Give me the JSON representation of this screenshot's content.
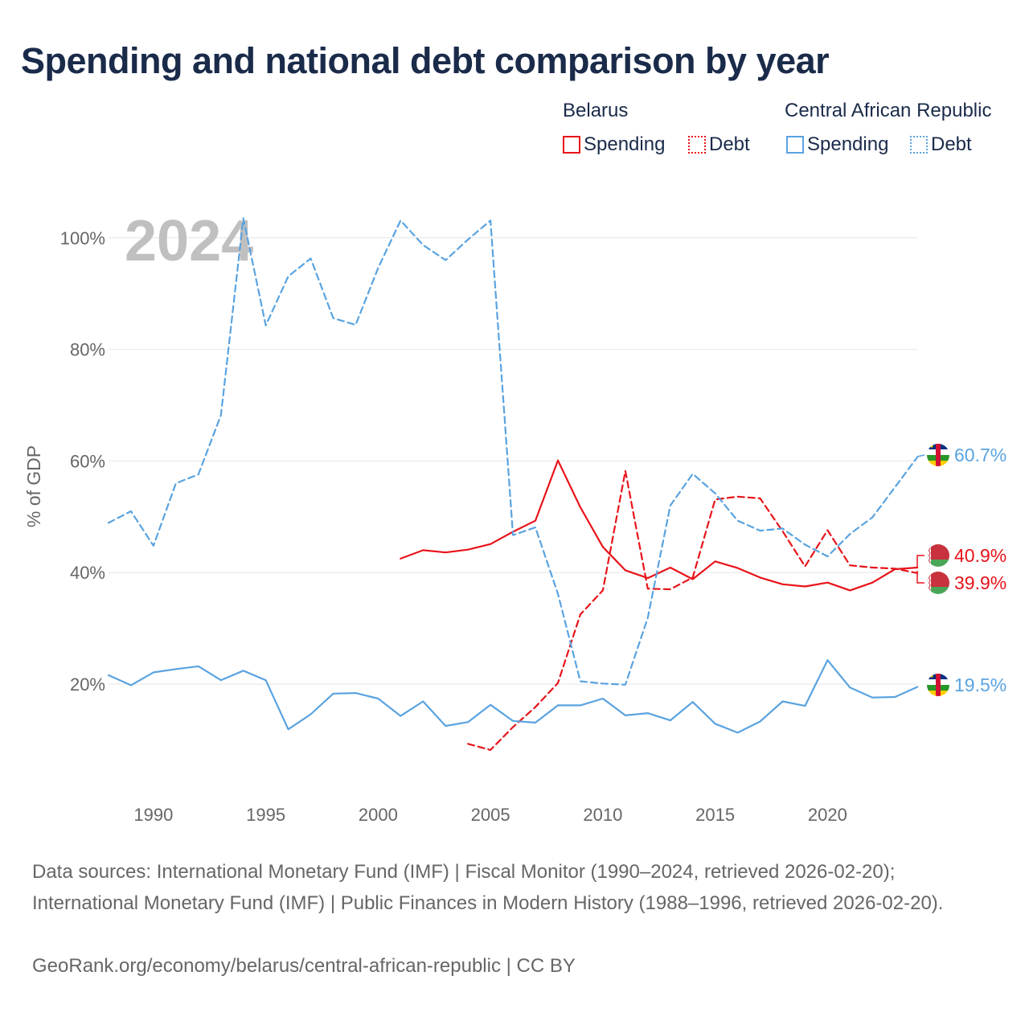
{
  "title": "Spending and national debt comparison by year",
  "legend": {
    "groups": [
      {
        "country": "Belarus",
        "spending_label": "Spending",
        "debt_label": "Debt",
        "color": "#e8141a"
      },
      {
        "country": "Central African Republic",
        "spending_label": "Spending",
        "debt_label": "Debt",
        "color": "#5aa3e0"
      }
    ]
  },
  "year_watermark": "2024",
  "footer": {
    "sources": "Data sources: International Monetary Fund (IMF) | Fiscal Monitor (1990–2024, retrieved 2026-02-20); International Monetary Fund (IMF) | Public Finances in Modern History (1988–1996, retrieved 2026-02-20).",
    "credit": "GeoRank.org/economy/belarus/central-african-republic | CC BY"
  },
  "chart_data": {
    "type": "line",
    "title": "Spending and national debt comparison by year",
    "xlabel": "",
    "ylabel": "% of GDP",
    "xlim": [
      1988,
      2024
    ],
    "ylim": [
      0,
      105
    ],
    "x_ticks": [
      1990,
      1995,
      2000,
      2005,
      2010,
      2015,
      2020
    ],
    "y_ticks": [
      20,
      40,
      60,
      80,
      100
    ],
    "y_tick_labels": [
      "20%",
      "40%",
      "60%",
      "80%",
      "100%"
    ],
    "grid": true,
    "series": [
      {
        "name": "Belarus Spending",
        "country": "Belarus",
        "metric": "Spending",
        "color": "#e8141a",
        "dash": "solid",
        "x": [
          2001,
          2002,
          2003,
          2004,
          2005,
          2006,
          2007,
          2008,
          2009,
          2010,
          2011,
          2012,
          2013,
          2014,
          2015,
          2016,
          2017,
          2018,
          2019,
          2020,
          2021,
          2022,
          2023,
          2024
        ],
        "values": [
          42.5,
          44.0,
          43.6,
          44.1,
          45.1,
          47.3,
          49.3,
          60.1,
          51.7,
          44.6,
          40.4,
          39.0,
          40.9,
          38.8,
          42.0,
          40.8,
          39.1,
          37.9,
          37.5,
          38.2,
          36.8,
          38.2,
          40.6,
          40.9
        ],
        "end_label": "40.9%"
      },
      {
        "name": "Belarus Debt",
        "country": "Belarus",
        "metric": "Debt",
        "color": "#e8141a",
        "dash": "dashed",
        "x": [
          2004,
          2005,
          2006,
          2007,
          2008,
          2009,
          2010,
          2011,
          2012,
          2013,
          2014,
          2015,
          2016,
          2017,
          2018,
          2019,
          2020,
          2021,
          2022,
          2023,
          2024
        ],
        "values": [
          9.3,
          8.2,
          12.3,
          15.9,
          20.2,
          32.5,
          36.8,
          58.2,
          37.1,
          37.0,
          39.1,
          53.1,
          53.6,
          53.3,
          47.4,
          41.1,
          47.6,
          41.3,
          40.9,
          40.7,
          39.9
        ],
        "end_label": "39.9%"
      },
      {
        "name": "Central African Republic Spending",
        "country": "Central African Republic",
        "metric": "Spending",
        "color": "#5aa3e0",
        "dash": "solid",
        "x": [
          1988,
          1989,
          1990,
          1991,
          1992,
          1993,
          1994,
          1995,
          1996,
          1997,
          1998,
          1999,
          2000,
          2001,
          2002,
          2003,
          2004,
          2005,
          2006,
          2007,
          2008,
          2009,
          2010,
          2011,
          2012,
          2013,
          2014,
          2015,
          2016,
          2017,
          2018,
          2019,
          2020,
          2021,
          2022,
          2023,
          2024
        ],
        "values": [
          21.6,
          19.8,
          22.1,
          22.7,
          23.2,
          20.7,
          22.4,
          20.7,
          11.9,
          14.6,
          18.3,
          18.4,
          17.4,
          14.3,
          16.9,
          12.5,
          13.2,
          16.3,
          13.4,
          13.1,
          16.2,
          16.2,
          17.4,
          14.4,
          14.8,
          13.5,
          16.8,
          12.9,
          11.3,
          13.3,
          16.9,
          16.1,
          24.3,
          19.4,
          17.6,
          17.7,
          19.5
        ],
        "end_label": "19.5%"
      },
      {
        "name": "Central African Republic Debt",
        "country": "Central African Republic",
        "metric": "Debt",
        "color": "#5aa3e0",
        "dash": "dashed",
        "x": [
          1988,
          1989,
          1990,
          1991,
          1992,
          1993,
          1994,
          1995,
          1996,
          1997,
          1998,
          1999,
          2000,
          2001,
          2002,
          2003,
          2004,
          2005,
          2006,
          2007,
          2008,
          2009,
          2010,
          2011,
          2012,
          2013,
          2014,
          2015,
          2016,
          2017,
          2018,
          2019,
          2020,
          2021,
          2022,
          2023,
          2024
        ],
        "values": [
          48.9,
          51.0,
          44.8,
          56.0,
          57.6,
          68.2,
          103.5,
          84.3,
          93.1,
          96.3,
          85.6,
          84.4,
          94.6,
          103.1,
          98.7,
          96.0,
          99.7,
          103.1,
          46.7,
          48.1,
          36.2,
          20.5,
          20.1,
          19.9,
          31.9,
          52.0,
          57.7,
          54.2,
          49.3,
          47.5,
          47.9,
          45.0,
          42.9,
          46.9,
          49.9,
          55.3,
          60.7
        ],
        "end_label": "60.7%"
      }
    ]
  }
}
